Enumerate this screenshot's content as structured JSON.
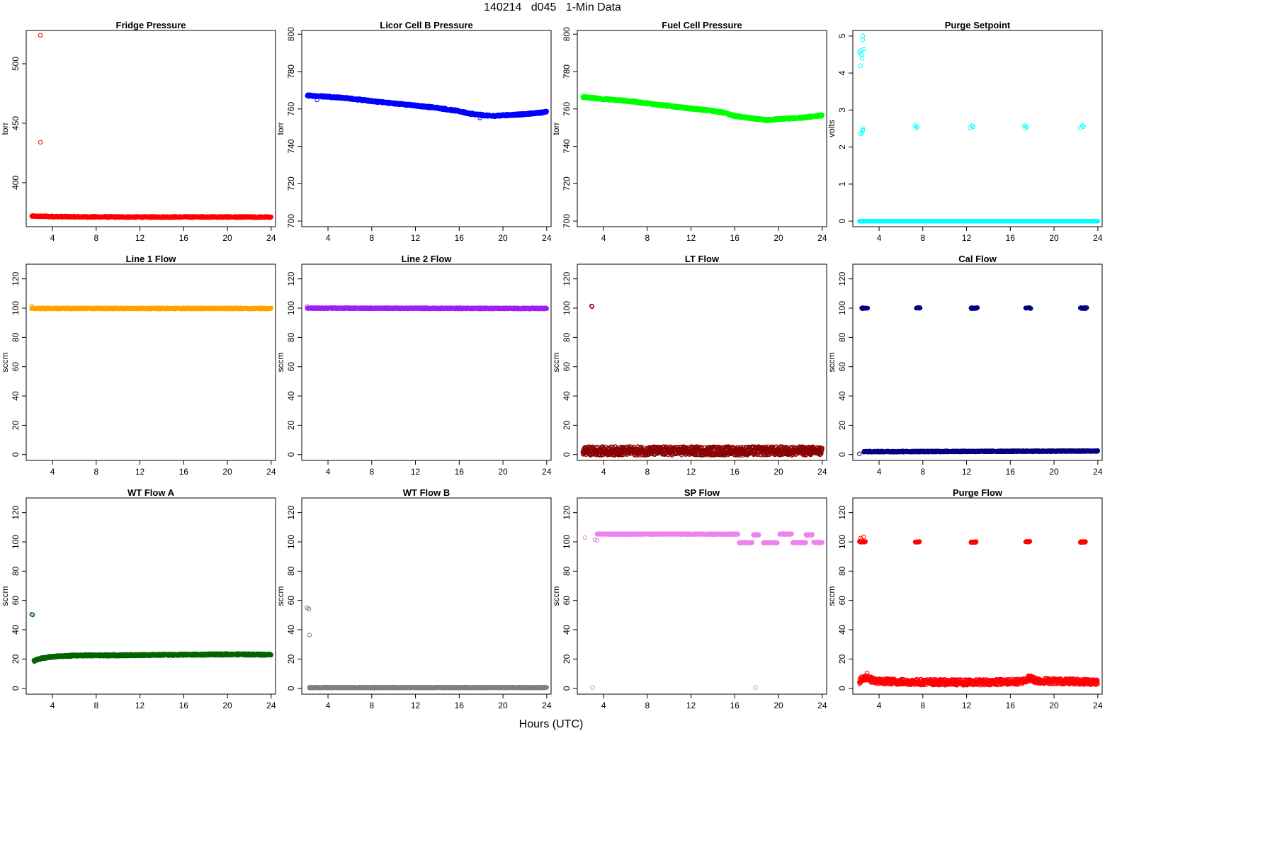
{
  "figure": {
    "title": "140214   d045   1-Min Data",
    "xlabel": "Hours (UTC)"
  },
  "chart_data": [
    {
      "type": "scatter",
      "title": "Fridge Pressure",
      "ylabel": "torr",
      "color": "#ff0000",
      "xlim": [
        1.6,
        24.4
      ],
      "ylim": [
        363,
        528
      ],
      "xticks": [
        4,
        8,
        12,
        16,
        20,
        24
      ],
      "yticks": [
        400,
        450,
        500
      ],
      "series": [
        {
          "kind": "band",
          "x0": 2.1,
          "x1": 24.0,
          "points": [
            [
              2.1,
              371.8
            ],
            [
              6,
              371.3
            ],
            [
              12,
              371.1
            ],
            [
              18,
              371.2
            ],
            [
              24,
              371.0
            ]
          ],
          "noise": 0.6,
          "density": 2
        },
        {
          "kind": "points",
          "points": [
            [
              2.9,
              524
            ],
            [
              2.9,
              434
            ]
          ]
        }
      ]
    },
    {
      "type": "scatter",
      "title": "Licor Cell B Pressure",
      "ylabel": "torr",
      "color": "#0000ff",
      "xlim": [
        1.6,
        24.4
      ],
      "ylim": [
        697,
        802
      ],
      "xticks": [
        4,
        8,
        12,
        16,
        20,
        24
      ],
      "yticks": [
        700,
        720,
        740,
        760,
        780,
        800
      ],
      "series": [
        {
          "kind": "band",
          "x0": 2.1,
          "x1": 24.0,
          "points": [
            [
              2.1,
              767.2
            ],
            [
              4,
              766.6
            ],
            [
              6,
              765.6
            ],
            [
              8,
              764.2
            ],
            [
              10,
              763.0
            ],
            [
              12,
              761.8
            ],
            [
              14,
              760.6
            ],
            [
              16,
              758.8
            ],
            [
              17,
              757.4
            ],
            [
              18,
              756.8
            ],
            [
              19,
              756.2
            ],
            [
              20,
              756.6
            ],
            [
              22,
              757.2
            ],
            [
              24,
              758.4
            ]
          ],
          "noise": 0.5,
          "density": 3
        },
        {
          "kind": "points",
          "points": [
            [
              3.0,
              764.8
            ],
            [
              17.9,
              755.2
            ],
            [
              17.2,
              757.9
            ]
          ]
        }
      ]
    },
    {
      "type": "scatter",
      "title": "Fuel Cell Pressure",
      "ylabel": "torr",
      "color": "#00ff00",
      "xlim": [
        1.6,
        24.4
      ],
      "ylim": [
        697,
        802
      ],
      "xticks": [
        4,
        8,
        12,
        16,
        20,
        24
      ],
      "yticks": [
        700,
        720,
        740,
        760,
        780,
        800
      ],
      "series": [
        {
          "kind": "band",
          "x0": 2.1,
          "x1": 24.0,
          "points": [
            [
              2.1,
              766.4
            ],
            [
              4,
              765.3
            ],
            [
              6,
              764.4
            ],
            [
              8,
              763.0
            ],
            [
              10,
              761.6
            ],
            [
              12,
              760.2
            ],
            [
              14,
              759.0
            ],
            [
              15,
              758.0
            ],
            [
              16,
              756.2
            ],
            [
              17,
              755.4
            ],
            [
              18,
              754.6
            ],
            [
              19,
              754.0
            ],
            [
              20,
              754.6
            ],
            [
              22,
              755.2
            ],
            [
              24,
              756.6
            ]
          ],
          "noise": 0.5,
          "density": 3
        }
      ]
    },
    {
      "type": "scatter",
      "title": "Purge Setpoint",
      "ylabel": "volts",
      "color": "#00ffff",
      "xlim": [
        1.6,
        24.4
      ],
      "ylim": [
        -0.15,
        5.15
      ],
      "xticks": [
        4,
        8,
        12,
        16,
        20,
        24
      ],
      "yticks": [
        0,
        1,
        2,
        3,
        4,
        5
      ],
      "series": [
        {
          "kind": "band",
          "x0": 2.2,
          "x1": 24.0,
          "points": [
            [
              2.2,
              0
            ],
            [
              24,
              0
            ]
          ],
          "noise": 0.0,
          "density": 2
        },
        {
          "kind": "points",
          "points": [
            [
              2.3,
              4.6
            ],
            [
              2.5,
              4.9
            ],
            [
              2.5,
              5.0
            ],
            [
              2.4,
              4.5
            ],
            [
              2.3,
              4.2
            ],
            [
              2.6,
              4.65
            ],
            [
              2.2,
              4.55
            ],
            [
              2.45,
              4.4
            ],
            [
              2.3,
              2.35
            ],
            [
              2.5,
              2.45
            ],
            [
              2.5,
              2.5
            ],
            [
              2.4,
              2.38
            ],
            [
              7.3,
              2.58
            ],
            [
              7.4,
              2.52
            ],
            [
              7.5,
              2.55
            ],
            [
              12.3,
              2.52
            ],
            [
              12.5,
              2.58
            ],
            [
              12.6,
              2.55
            ],
            [
              17.3,
              2.58
            ],
            [
              17.4,
              2.52
            ],
            [
              17.5,
              2.55
            ],
            [
              22.4,
              2.52
            ],
            [
              22.6,
              2.58
            ],
            [
              22.7,
              2.55
            ]
          ]
        }
      ]
    },
    {
      "type": "scatter",
      "title": "Line 1 Flow",
      "ylabel": "sccm",
      "color": "#ffa500",
      "xlim": [
        1.6,
        24.4
      ],
      "ylim": [
        -4,
        130
      ],
      "xticks": [
        4,
        8,
        12,
        16,
        20,
        24
      ],
      "yticks": [
        0,
        20,
        40,
        60,
        80,
        100,
        120
      ],
      "series": [
        {
          "kind": "band",
          "x0": 2.1,
          "x1": 24.0,
          "points": [
            [
              2.1,
              99.8
            ],
            [
              24,
              99.8
            ]
          ],
          "noise": 0.4,
          "density": 3
        },
        {
          "kind": "points",
          "points": [
            [
              2.1,
              101.5
            ]
          ]
        }
      ]
    },
    {
      "type": "scatter",
      "title": "Line 2 Flow",
      "ylabel": "sccm",
      "color": "#a020f0",
      "xlim": [
        1.6,
        24.4
      ],
      "ylim": [
        -4,
        130
      ],
      "xticks": [
        4,
        8,
        12,
        16,
        20,
        24
      ],
      "yticks": [
        0,
        20,
        40,
        60,
        80,
        100,
        120
      ],
      "series": [
        {
          "kind": "band",
          "x0": 2.1,
          "x1": 24.0,
          "points": [
            [
              2.1,
              100.0
            ],
            [
              24,
              99.8
            ]
          ],
          "noise": 0.4,
          "density": 3
        },
        {
          "kind": "points",
          "points": [
            [
              2.1,
              101
            ]
          ]
        }
      ]
    },
    {
      "type": "scatter",
      "title": "LT Flow",
      "ylabel": "sccm",
      "color": "#8b0000",
      "xlim": [
        1.6,
        24.4
      ],
      "ylim": [
        -4,
        130
      ],
      "xticks": [
        4,
        8,
        12,
        16,
        20,
        24
      ],
      "yticks": [
        0,
        20,
        40,
        60,
        80,
        100,
        120
      ],
      "series": [
        {
          "kind": "band",
          "x0": 2.1,
          "x1": 24.0,
          "points": [
            [
              2.1,
              2.5
            ],
            [
              24,
              2.5
            ]
          ],
          "noise": 3.0,
          "density": 3
        },
        {
          "kind": "points",
          "points": [
            [
              2.9,
              101.5
            ],
            [
              2.95,
              101
            ]
          ]
        }
      ]
    },
    {
      "type": "scatter",
      "title": "Cal Flow",
      "ylabel": "sccm",
      "color": "#000080",
      "xlim": [
        1.6,
        24.4
      ],
      "ylim": [
        -4,
        130
      ],
      "xticks": [
        4,
        8,
        12,
        16,
        20,
        24
      ],
      "yticks": [
        0,
        20,
        40,
        60,
        80,
        100,
        120
      ],
      "series": [
        {
          "kind": "band",
          "x0": 2.6,
          "x1": 24.0,
          "points": [
            [
              2.6,
              2.0
            ],
            [
              24,
              2.4
            ]
          ],
          "noise": 0.4,
          "density": 3
        },
        {
          "kind": "cluster",
          "y": 100,
          "ranges": [
            [
              2.4,
              3.0
            ],
            [
              7.4,
              7.8
            ],
            [
              12.4,
              13.0
            ],
            [
              17.4,
              17.9
            ],
            [
              22.4,
              23.0
            ]
          ]
        },
        {
          "kind": "points",
          "points": [
            [
              2.2,
              0.5
            ]
          ]
        }
      ]
    },
    {
      "type": "scatter",
      "title": "WT Flow A",
      "ylabel": "sccm",
      "color": "#006400",
      "xlim": [
        1.6,
        24.4
      ],
      "ylim": [
        -4,
        130
      ],
      "xticks": [
        4,
        8,
        12,
        16,
        20,
        24
      ],
      "yticks": [
        0,
        20,
        40,
        60,
        80,
        100,
        120
      ],
      "series": [
        {
          "kind": "band",
          "x0": 2.3,
          "x1": 24.0,
          "points": [
            [
              2.3,
              18.8
            ],
            [
              3,
              20.5
            ],
            [
              4,
              21.6
            ],
            [
              6,
              22.4
            ],
            [
              12,
              22.7
            ],
            [
              20,
              23.2
            ],
            [
              24,
              23.0
            ]
          ],
          "noise": 0.6,
          "density": 3
        },
        {
          "kind": "points",
          "points": [
            [
              2.1,
              50.5
            ],
            [
              2.2,
              50.2
            ]
          ]
        }
      ]
    },
    {
      "type": "scatter",
      "title": "WT Flow B",
      "ylabel": "sccm",
      "color": "#808080",
      "xlim": [
        1.6,
        24.4
      ],
      "ylim": [
        -4,
        130
      ],
      "xticks": [
        4,
        8,
        12,
        16,
        20,
        24
      ],
      "yticks": [
        0,
        20,
        40,
        60,
        80,
        100,
        120
      ],
      "series": [
        {
          "kind": "band",
          "x0": 2.3,
          "x1": 24.0,
          "points": [
            [
              2.3,
              0.5
            ],
            [
              24,
              0.5
            ]
          ],
          "noise": 0.3,
          "density": 3
        },
        {
          "kind": "points",
          "points": [
            [
              2.1,
              55
            ],
            [
              2.25,
              54.2
            ],
            [
              2.3,
              36.5
            ]
          ]
        }
      ]
    },
    {
      "type": "scatter",
      "title": "SP Flow",
      "ylabel": "sccm",
      "color": "#ee82ee",
      "xlim": [
        1.6,
        24.4
      ],
      "ylim": [
        -4,
        130
      ],
      "xticks": [
        4,
        8,
        12,
        16,
        20,
        24
      ],
      "yticks": [
        0,
        20,
        40,
        60,
        80,
        100,
        120
      ],
      "series": [
        {
          "kind": "band",
          "x0": 3.4,
          "x1": 16.3,
          "points": [
            [
              3.4,
              105.3
            ],
            [
              16.3,
              105.3
            ]
          ],
          "noise": 0.3,
          "density": 3
        },
        {
          "kind": "band",
          "x0": 16.4,
          "x1": 17.6,
          "points": [
            [
              16.4,
              99.5
            ],
            [
              17.6,
              99.5
            ]
          ],
          "noise": 0.3,
          "density": 3
        },
        {
          "kind": "band",
          "x0": 17.7,
          "x1": 18.2,
          "points": [
            [
              17.7,
              104.8
            ],
            [
              18.2,
              104.8
            ]
          ],
          "noise": 0.3,
          "density": 3
        },
        {
          "kind": "band",
          "x0": 18.6,
          "x1": 19.9,
          "points": [
            [
              18.6,
              99.5
            ],
            [
              19.9,
              99.5
            ]
          ],
          "noise": 0.3,
          "density": 3
        },
        {
          "kind": "band",
          "x0": 20.1,
          "x1": 21.2,
          "points": [
            [
              20.1,
              105.3
            ],
            [
              21.2,
              105.3
            ]
          ],
          "noise": 0.3,
          "density": 3
        },
        {
          "kind": "band",
          "x0": 21.3,
          "x1": 22.5,
          "points": [
            [
              21.3,
              99.5
            ],
            [
              22.5,
              99.5
            ]
          ],
          "noise": 0.3,
          "density": 3
        },
        {
          "kind": "band",
          "x0": 22.5,
          "x1": 23.1,
          "points": [
            [
              22.5,
              104.8
            ],
            [
              23.1,
              104.8
            ]
          ],
          "noise": 0.3,
          "density": 3
        },
        {
          "kind": "band",
          "x0": 23.2,
          "x1": 24.0,
          "points": [
            [
              23.2,
              99.6
            ],
            [
              24,
              99.6
            ]
          ],
          "noise": 0.3,
          "density": 3
        },
        {
          "kind": "points",
          "points": [
            [
              2.3,
              103
            ],
            [
              3.2,
              101.5
            ],
            [
              3.4,
              101
            ],
            [
              3.0,
              0.5
            ],
            [
              17.9,
              0.5
            ]
          ]
        }
      ]
    },
    {
      "type": "scatter",
      "title": "Purge Flow",
      "ylabel": "sccm",
      "color": "#ff0000",
      "xlim": [
        1.6,
        24.4
      ],
      "ylim": [
        -4,
        130
      ],
      "xticks": [
        4,
        8,
        12,
        16,
        20,
        24
      ],
      "yticks": [
        0,
        20,
        40,
        60,
        80,
        100,
        120
      ],
      "series": [
        {
          "kind": "band",
          "x0": 2.2,
          "x1": 24.0,
          "points": [
            [
              2.2,
              5.0
            ],
            [
              2.8,
              7.5
            ],
            [
              3.5,
              5.0
            ],
            [
              6,
              4.4
            ],
            [
              12,
              4.0
            ],
            [
              17,
              4.5
            ],
            [
              17.7,
              7.0
            ],
            [
              18.5,
              5.2
            ],
            [
              24,
              4.3
            ]
          ],
          "noise": 2.0,
          "density": 3
        },
        {
          "kind": "cluster",
          "y": 100,
          "ranges": [
            [
              2.2,
              2.8
            ],
            [
              7.3,
              7.7
            ],
            [
              12.4,
              12.9
            ],
            [
              17.4,
              17.8
            ],
            [
              22.4,
              22.9
            ]
          ]
        },
        {
          "kind": "points",
          "points": [
            [
              2.3,
              102.5
            ],
            [
              2.6,
              103.5
            ],
            [
              2.4,
              101.5
            ],
            [
              2.9,
              10.5
            ],
            [
              17.9,
              8.5
            ]
          ]
        }
      ]
    }
  ]
}
